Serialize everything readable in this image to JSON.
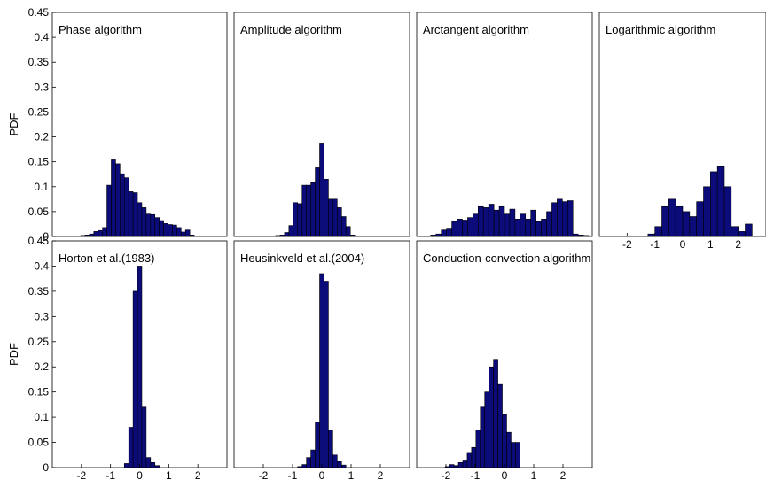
{
  "chart_data": [
    {
      "type": "bar",
      "title": "Phase algorithm",
      "ylabel": "PDF",
      "xlim": [
        -3,
        3
      ],
      "ylim": [
        0,
        0.45
      ],
      "x_ticks": [],
      "y_ticks": [
        0,
        0.05,
        0.1,
        0.15,
        0.2,
        0.25,
        0.3,
        0.35,
        0.4,
        0.45
      ],
      "bin_width": 0.15,
      "x": [
        -1.95,
        -1.8,
        -1.65,
        -1.5,
        -1.35,
        -1.2,
        -1.05,
        -0.9,
        -0.75,
        -0.6,
        -0.45,
        -0.3,
        -0.15,
        0,
        0.15,
        0.3,
        0.45,
        0.6,
        0.75,
        0.9,
        1.05,
        1.2,
        1.35,
        1.5,
        1.65,
        1.8
      ],
      "values": [
        0.002,
        0.003,
        0.005,
        0.01,
        0.012,
        0.018,
        0.103,
        0.154,
        0.146,
        0.126,
        0.118,
        0.09,
        0.088,
        0.068,
        0.058,
        0.045,
        0.044,
        0.038,
        0.032,
        0.026,
        0.024,
        0.023,
        0.018,
        0.009,
        0.013,
        0.003
      ],
      "color": "#0b0b7a"
    },
    {
      "type": "bar",
      "title": "Amplitude algorithm",
      "ylabel": "",
      "xlim": [
        -3,
        3
      ],
      "ylim": [
        0,
        0.45
      ],
      "x_ticks": [],
      "y_ticks": [],
      "bin_width": 0.15,
      "x": [
        -1.5,
        -1.35,
        -1.2,
        -1.05,
        -0.9,
        -0.75,
        -0.6,
        -0.45,
        -0.3,
        -0.15,
        0,
        0.15,
        0.3,
        0.45,
        0.6,
        0.75,
        0.9,
        1.05
      ],
      "values": [
        0.002,
        0.003,
        0.008,
        0.022,
        0.068,
        0.066,
        0.103,
        0.103,
        0.108,
        0.138,
        0.186,
        0.115,
        0.075,
        0.075,
        0.058,
        0.04,
        0.02,
        0.003
      ],
      "color": "#0b0b7a"
    },
    {
      "type": "bar",
      "title": "Arctangent algorithm",
      "ylabel": "",
      "xlim": [
        -3,
        3
      ],
      "ylim": [
        0,
        0.45
      ],
      "x_ticks": [],
      "y_ticks": [],
      "bin_width": 0.18,
      "x": [
        -2.43,
        -2.25,
        -2.07,
        -1.89,
        -1.71,
        -1.53,
        -1.35,
        -1.17,
        -0.99,
        -0.81,
        -0.63,
        -0.45,
        -0.27,
        -0.09,
        0.09,
        0.27,
        0.45,
        0.63,
        0.81,
        0.99,
        1.17,
        1.35,
        1.53,
        1.71,
        1.89,
        2.07,
        2.25,
        2.43,
        2.61,
        2.79
      ],
      "values": [
        0.003,
        0.005,
        0.013,
        0.015,
        0.03,
        0.035,
        0.033,
        0.038,
        0.045,
        0.06,
        0.058,
        0.065,
        0.053,
        0.06,
        0.045,
        0.055,
        0.035,
        0.045,
        0.035,
        0.053,
        0.03,
        0.035,
        0.05,
        0.068,
        0.075,
        0.07,
        0.072,
        0.005,
        0.003,
        0.002
      ],
      "color": "#0b0b7a"
    },
    {
      "type": "bar",
      "title": "Logarithmic algorithm",
      "ylabel": "",
      "xlim": [
        -3,
        3
      ],
      "ylim": [
        0,
        0.45
      ],
      "x_ticks": [
        -2,
        -1,
        0,
        1,
        2
      ],
      "x_tick_labels": [
        "-2",
        "-1",
        "0",
        "1",
        "2"
      ],
      "y_ticks": [],
      "bin_width": 0.25,
      "x": [
        -1.125,
        -0.875,
        -0.625,
        -0.375,
        -0.125,
        0.125,
        0.375,
        0.625,
        0.875,
        1.125,
        1.375,
        1.625,
        1.875,
        2.125,
        2.375
      ],
      "values": [
        0.005,
        0.02,
        0.06,
        0.075,
        0.06,
        0.05,
        0.04,
        0.07,
        0.1,
        0.13,
        0.14,
        0.1,
        0.02,
        0.01,
        0.025
      ],
      "color": "#0b0b7a"
    },
    {
      "type": "bar",
      "title": "Horton et al.(1983)",
      "ylabel": "PDF",
      "xlim": [
        -3,
        3
      ],
      "ylim": [
        0,
        0.45
      ],
      "x_ticks": [
        -2,
        -1,
        0,
        1,
        2
      ],
      "x_tick_labels": [
        "-2",
        "-1",
        "0",
        "1",
        "2"
      ],
      "y_ticks": [
        0,
        0.05,
        0.1,
        0.15,
        0.2,
        0.25,
        0.3,
        0.35,
        0.4,
        0.45
      ],
      "bin_width": 0.15,
      "x": [
        -0.45,
        -0.3,
        -0.15,
        0,
        0.15,
        0.3,
        0.45,
        0.6
      ],
      "values": [
        0.008,
        0.08,
        0.35,
        0.4,
        0.12,
        0.02,
        0.01,
        0.004
      ],
      "color": "#0b0b7a"
    },
    {
      "type": "bar",
      "title": "Heusinkveld et al.(2004)",
      "ylabel": "",
      "xlim": [
        -3,
        3
      ],
      "ylim": [
        0,
        0.45
      ],
      "x_ticks": [
        -2,
        -1,
        0,
        1,
        2
      ],
      "x_tick_labels": [
        "-2",
        "-1",
        "0",
        "1",
        "2"
      ],
      "y_ticks": [],
      "bin_width": 0.15,
      "x": [
        -0.75,
        -0.6,
        -0.45,
        -0.3,
        -0.15,
        0,
        0.15,
        0.3,
        0.45,
        0.6,
        0.75
      ],
      "values": [
        0.002,
        0.006,
        0.02,
        0.035,
        0.09,
        0.385,
        0.37,
        0.075,
        0.025,
        0.012,
        0.005
      ],
      "color": "#0b0b7a"
    },
    {
      "type": "bar",
      "title": "Conduction-convection algorithm",
      "ylabel": "",
      "xlim": [
        -3,
        3
      ],
      "ylim": [
        0,
        0.45
      ],
      "x_ticks": [
        -2,
        -1,
        0,
        1,
        2
      ],
      "x_tick_labels": [
        "-2",
        "-1",
        "0",
        "1",
        "2"
      ],
      "y_ticks": [],
      "bin_width": 0.15,
      "x": [
        -1.95,
        -1.8,
        -1.65,
        -1.5,
        -1.35,
        -1.2,
        -1.05,
        -0.9,
        -0.75,
        -0.6,
        -0.45,
        -0.3,
        -0.15,
        0,
        0.15,
        0.3,
        0.45
      ],
      "values": [
        0.002,
        0.006,
        0.004,
        0.01,
        0.015,
        0.03,
        0.04,
        0.075,
        0.12,
        0.15,
        0.2,
        0.215,
        0.165,
        0.105,
        0.07,
        0.05,
        0.05
      ],
      "color": "#0b0b7a"
    }
  ]
}
